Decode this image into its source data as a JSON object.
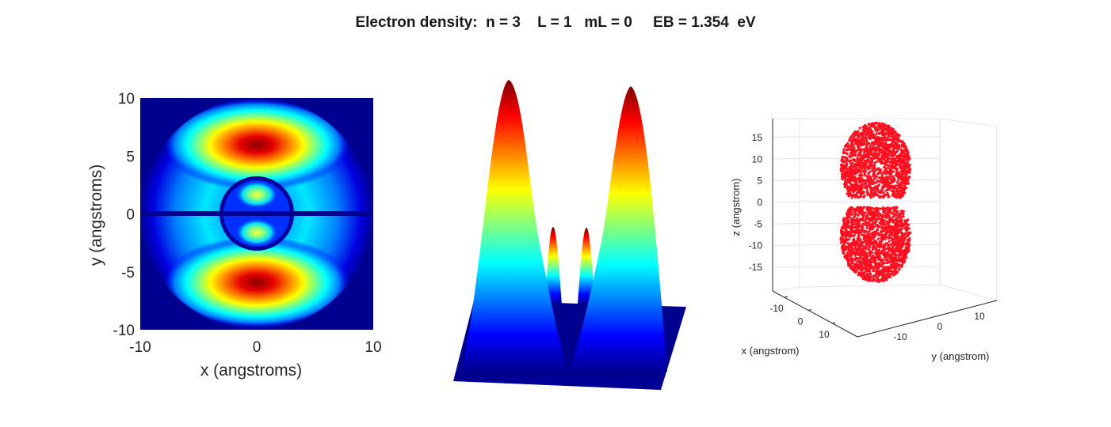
{
  "title": "Electron density:  n = 3    L = 1   mL = 0     EB = 1.354  eV",
  "colors": {
    "point": "#ff1020",
    "floor": "#00008f"
  },
  "chart_data": [
    {
      "type": "heatmap",
      "xlabel": "x  (angstroms)",
      "ylabel": "y   (angstroms)",
      "xlim": [
        -10,
        10
      ],
      "ylim": [
        -10,
        10
      ],
      "xticks": [
        -10,
        0,
        10
      ],
      "yticks": [
        -10,
        -5,
        0,
        5,
        10
      ],
      "colormap": "jet",
      "peaks": [
        {
          "x": 0,
          "y": 6,
          "relative_density": 1.0
        },
        {
          "x": 0,
          "y": -6,
          "relative_density": 1.0
        },
        {
          "x": 0,
          "y": 1.5,
          "relative_density": 0.3
        },
        {
          "x": 0,
          "y": -1.5,
          "relative_density": 0.3
        }
      ]
    },
    {
      "type": "surface",
      "colormap": "jet",
      "profile": [
        {
          "x": -6,
          "relative_density": 1.0
        },
        {
          "x": -1.5,
          "relative_density": 0.3
        },
        {
          "x": 1.5,
          "relative_density": 0.3
        },
        {
          "x": 6,
          "relative_density": 1.0
        }
      ]
    },
    {
      "type": "scatter",
      "xlabel": "x (angstrom)",
      "ylabel": "y (angstrom)",
      "zlabel": "z (angstrom)",
      "xticks": [
        -10,
        0,
        10
      ],
      "yticks": [
        -10,
        0,
        10
      ],
      "zticks": [
        15,
        10,
        5,
        0,
        -5,
        -10,
        -15
      ],
      "zlim": [
        -19,
        19
      ],
      "lobes": [
        {
          "center_z": 8,
          "radius": 11
        },
        {
          "center_z": -8,
          "radius": 11
        }
      ]
    }
  ]
}
